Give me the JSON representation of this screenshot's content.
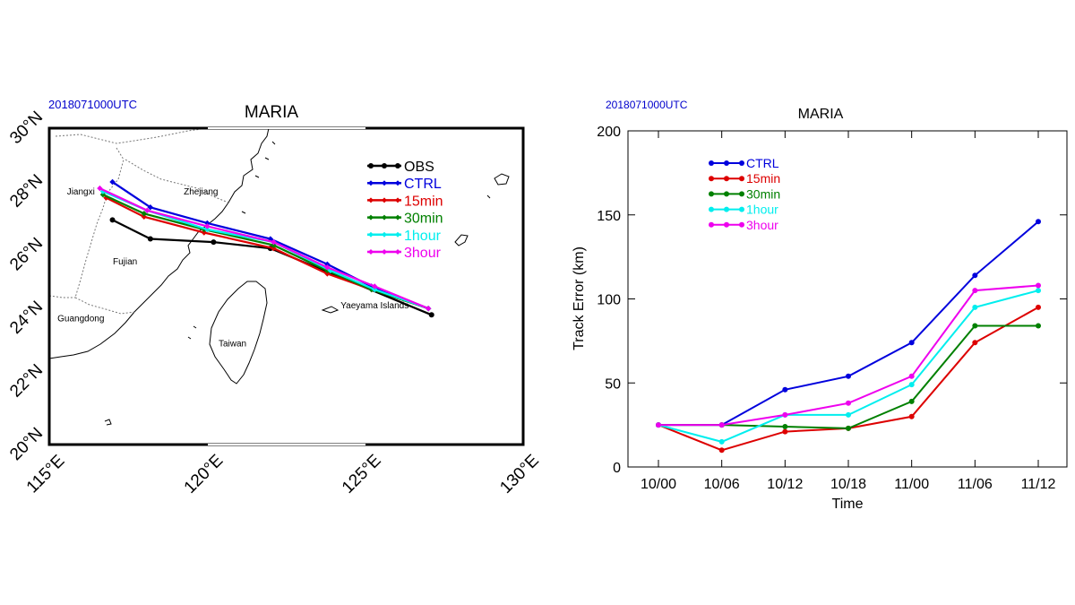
{
  "chart_data": [
    {
      "type": "line",
      "subtype": "track-map",
      "datetime_label": "2018071000UTC",
      "title": "MARIA",
      "lon_range": [
        115,
        130
      ],
      "lat_range": [
        20,
        30
      ],
      "x_tick_labels": [
        "115°E",
        "120°E",
        "125°E",
        "130°E"
      ],
      "x_ticks": [
        115,
        120,
        125,
        130
      ],
      "y_tick_labels": [
        "20°N",
        "22°N",
        "24°N",
        "26°N",
        "28°N",
        "30°N"
      ],
      "y_ticks": [
        20,
        22,
        24,
        26,
        28,
        30
      ],
      "legend_position": "top-right",
      "place_labels": [
        {
          "name": "Jiangxi",
          "lon": 116.0,
          "lat": 27.9
        },
        {
          "name": "Zhejiang",
          "lon": 119.8,
          "lat": 27.9
        },
        {
          "name": "Fujian",
          "lon": 117.4,
          "lat": 25.7
        },
        {
          "name": "Guangdong",
          "lon": 116.0,
          "lat": 23.9
        },
        {
          "name": "Taiwan",
          "lon": 120.8,
          "lat": 23.1
        },
        {
          "name": "Yaeyama Islands",
          "lon": 125.3,
          "lat": 24.3
        }
      ],
      "series": [
        {
          "name": "OBS",
          "color": "#000000",
          "lon": [
            127.1,
            122.0,
            120.2,
            118.2,
            117.0
          ],
          "lat": [
            24.1,
            26.2,
            26.4,
            26.5,
            27.1
          ]
        },
        {
          "name": "CTRL",
          "color": "#0000dd",
          "lon": [
            127.0,
            125.2,
            123.8,
            122.0,
            120.0,
            118.2,
            117.0
          ],
          "lat": [
            24.3,
            25.0,
            25.7,
            26.5,
            27.0,
            27.5,
            28.3
          ]
        },
        {
          "name": "15min",
          "color": "#dd0000",
          "lon": [
            127.0,
            125.2,
            123.8,
            122.1,
            119.9,
            118.0,
            116.8
          ],
          "lat": [
            24.3,
            24.9,
            25.4,
            26.2,
            26.7,
            27.2,
            27.8
          ]
        },
        {
          "name": "30min",
          "color": "#008000",
          "lon": [
            127.0,
            125.2,
            123.8,
            122.1,
            119.9,
            118.0,
            116.7
          ],
          "lat": [
            24.3,
            24.9,
            25.5,
            26.3,
            26.8,
            27.3,
            27.9
          ]
        },
        {
          "name": "1hour",
          "color": "#00eeee",
          "lon": [
            127.0,
            125.3,
            123.9,
            122.1,
            120.0,
            118.1,
            116.7
          ],
          "lat": [
            24.3,
            24.9,
            25.5,
            26.4,
            26.8,
            27.4,
            28.0
          ]
        },
        {
          "name": "3hour",
          "color": "#ee00ee",
          "lon": [
            127.0,
            125.3,
            123.8,
            122.1,
            120.0,
            118.1,
            116.6
          ],
          "lat": [
            24.3,
            25.0,
            25.6,
            26.4,
            26.9,
            27.4,
            28.1
          ]
        }
      ]
    },
    {
      "type": "line",
      "datetime_label": "2018071000UTC",
      "title": "MARIA",
      "xlabel": "Time",
      "ylabel": "Track Error (km)",
      "categories": [
        "10/00",
        "10/06",
        "10/12",
        "10/18",
        "11/00",
        "11/06",
        "11/12"
      ],
      "ylim": [
        0,
        200
      ],
      "y_ticks": [
        0,
        50,
        100,
        150,
        200
      ],
      "legend_position": "top-left",
      "series": [
        {
          "name": "CTRL",
          "color": "#0000dd",
          "values": [
            25,
            25,
            46,
            54,
            74,
            114,
            146
          ]
        },
        {
          "name": "15min",
          "color": "#dd0000",
          "values": [
            25,
            10,
            21,
            23,
            30,
            74,
            95
          ]
        },
        {
          "name": "30min",
          "color": "#008000",
          "values": [
            25,
            25,
            24,
            23,
            39,
            84,
            84
          ]
        },
        {
          "name": "1hour",
          "color": "#00eeee",
          "values": [
            25,
            15,
            31,
            31,
            49,
            95,
            105
          ]
        },
        {
          "name": "3hour",
          "color": "#ee00ee",
          "values": [
            25,
            25,
            31,
            38,
            54,
            105,
            108
          ]
        }
      ]
    }
  ]
}
